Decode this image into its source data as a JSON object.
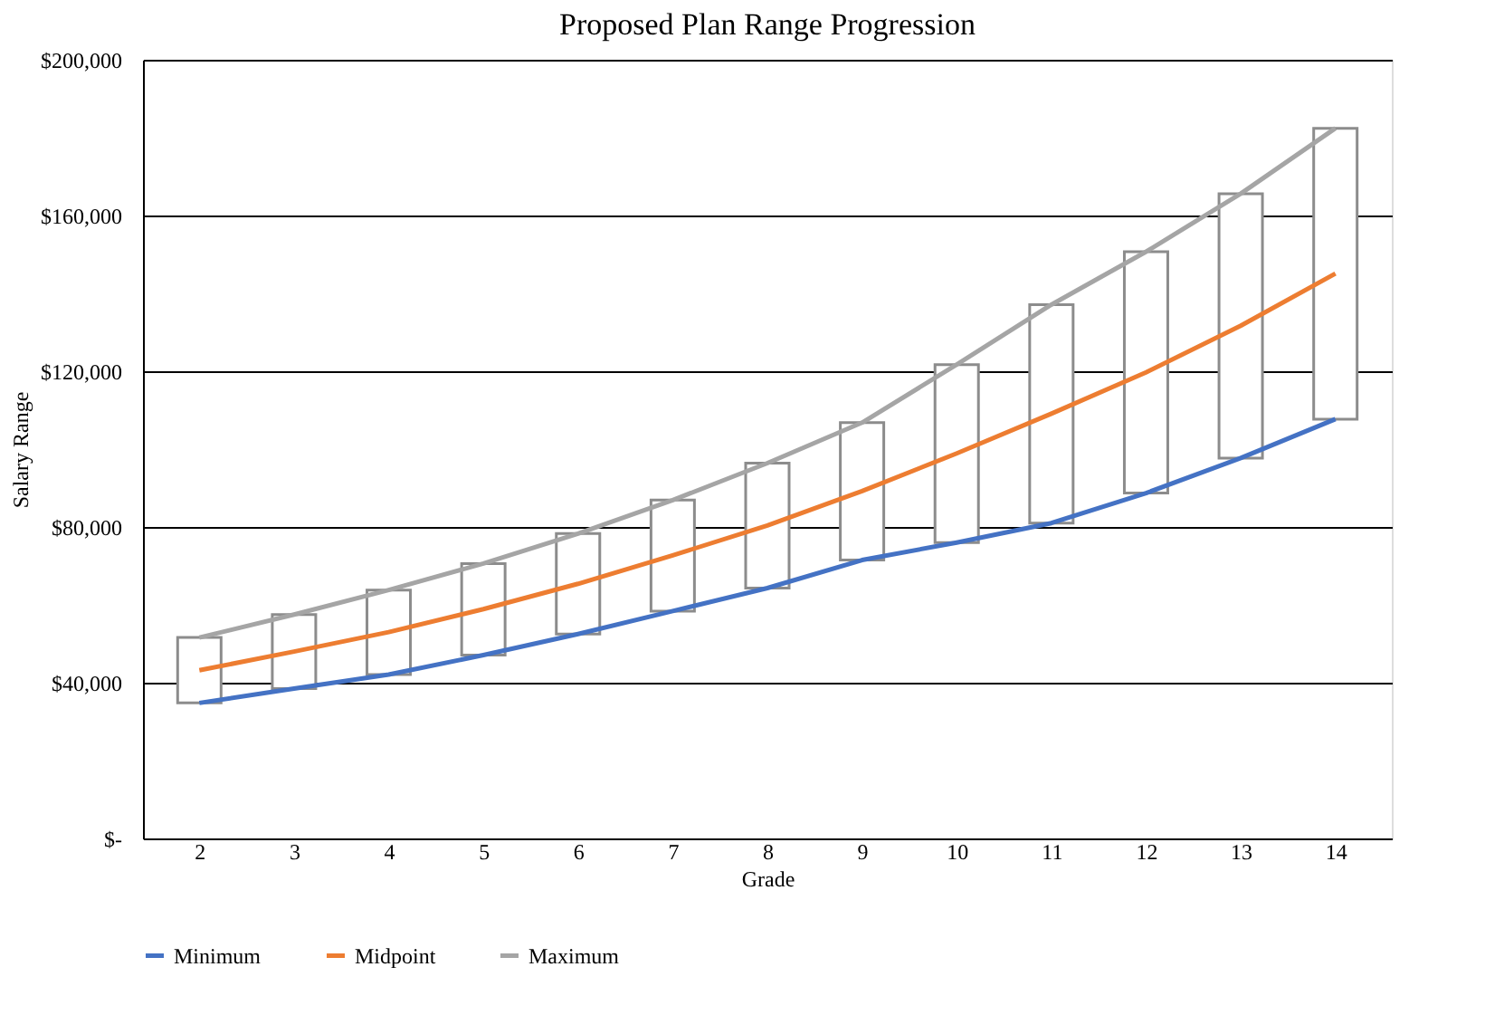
{
  "chart_data": {
    "type": "line",
    "title": "Proposed Plan Range Progression",
    "xlabel": "Grade",
    "ylabel": "Salary Range",
    "categories": [
      "2",
      "3",
      "4",
      "5",
      "6",
      "7",
      "8",
      "9",
      "10",
      "11",
      "12",
      "13",
      "14"
    ],
    "series": [
      {
        "type": "bar",
        "color": "#ffffff",
        "base": [
          34800,
          38500,
          42100,
          47100,
          52500,
          58400,
          64300,
          71500,
          76000,
          81000,
          88700,
          97700,
          107700
        ],
        "values": [
          16800,
          19000,
          21700,
          23500,
          25800,
          28500,
          32100,
          35300,
          45700,
          56100,
          62000,
          67900,
          74700
        ]
      },
      {
        "name": "Minimum",
        "color": "#4472c4",
        "values": [
          34800,
          38500,
          42100,
          47100,
          52500,
          58400,
          64300,
          71500,
          76000,
          81000,
          88700,
          97700,
          107700
        ]
      },
      {
        "name": "Midpoint",
        "color": "#ed7d31",
        "values": [
          43200,
          48000,
          53000,
          58900,
          65400,
          72700,
          80400,
          89200,
          98900,
          109100,
          119700,
          131700,
          145100
        ]
      },
      {
        "name": "Maximum",
        "color": "#a5a5a5",
        "values": [
          51600,
          57500,
          63800,
          70600,
          78300,
          86900,
          96400,
          106800,
          121700,
          137100,
          150700,
          165600,
          182400
        ]
      }
    ],
    "ylim": [
      0,
      200000
    ],
    "yticks": [
      {
        "value": 0,
        "label": "$-"
      },
      {
        "value": 40000,
        "label": "$40,000"
      },
      {
        "value": 80000,
        "label": "$80,000"
      },
      {
        "value": 120000,
        "label": "$120,000"
      },
      {
        "value": 160000,
        "label": "$160,000"
      },
      {
        "value": 200000,
        "label": "$200,000"
      }
    ],
    "grid": "y",
    "legend": "bottom",
    "marker": "none",
    "line_style": "solid"
  }
}
